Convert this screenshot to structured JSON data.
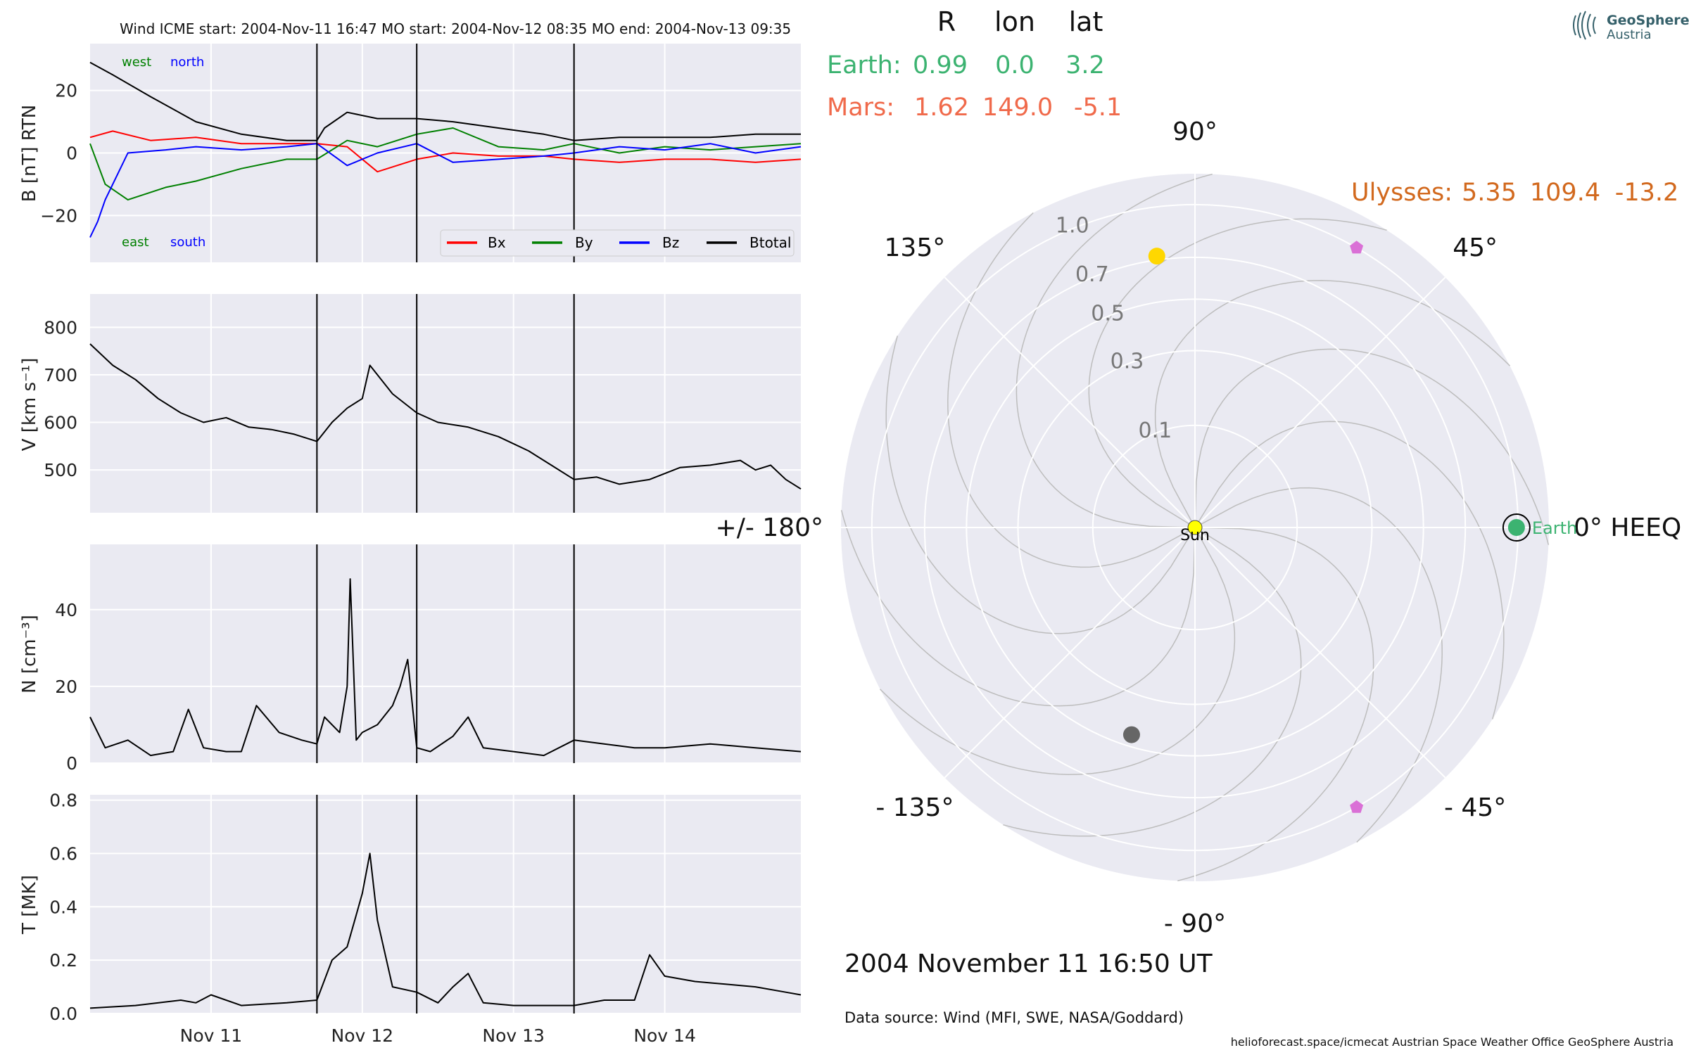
{
  "header": "Wind    ICME start: 2004-Nov-11 16:47   MO start: 2004-Nov-12 08:35   MO end: 2004-Nov-13 09:35",
  "logo": {
    "line1": "GeoSphere",
    "line2": "Austria"
  },
  "footer": {
    "date": "2004 November 11  16:50 UT",
    "source": "Data source: Wind (MFI, SWE, NASA/Goddard)",
    "credits": "helioforecast.space/icmecat   Austrian Space Weather Office   GeoSphere Austria"
  },
  "table": {
    "headers": [
      "R",
      "lon",
      "lat"
    ],
    "rows": [
      {
        "name": "Earth:",
        "R": "0.99",
        "lon": "0.0",
        "lat": "3.2",
        "color": "#3cb371"
      },
      {
        "name": "Mars:",
        "R": "1.62",
        "lon": "149.0",
        "lat": "-5.1",
        "color": "#f06a4b"
      },
      {
        "name": "Ulysses:",
        "R": "5.35",
        "lon": "109.4",
        "lat": "-13.2",
        "color": "#d2691e"
      }
    ]
  },
  "colors": {
    "panel_bg": "#eaeaf2",
    "bx": "#ff0000",
    "by": "#008000",
    "bz": "#0000ff",
    "bt": "#000000",
    "event_line": "#000000"
  },
  "chart_data": [
    {
      "type": "line",
      "ylabel": "B [nT] RTN",
      "ylim": [
        -35,
        35
      ],
      "yticks": [
        20,
        0,
        -20
      ],
      "yticklabels": [
        "20",
        "0",
        "−20"
      ],
      "annotations": {
        "west": "west",
        "north": "north",
        "east": "east",
        "south": "south"
      },
      "legend": [
        "Bx",
        "By",
        "Bz",
        "Btotal"
      ],
      "legend_position": "lower right",
      "x_unit": "days since 2004-11-10 00:00 UT",
      "event_lines": [
        1.7,
        2.36,
        3.4
      ],
      "series": [
        {
          "name": "Bx",
          "color": "#ff0000",
          "x": [
            0.2,
            0.35,
            0.6,
            0.9,
            1.2,
            1.5,
            1.7,
            1.9,
            2.1,
            2.36,
            2.6,
            2.9,
            3.2,
            3.4,
            3.7,
            4.0,
            4.3,
            4.6,
            4.9
          ],
          "y": [
            5,
            7,
            4,
            5,
            3,
            3,
            3,
            2,
            -6,
            -2,
            0,
            -1,
            -1,
            -2,
            -3,
            -2,
            -2,
            -3,
            -2
          ]
        },
        {
          "name": "By",
          "color": "#008000",
          "x": [
            0.2,
            0.3,
            0.45,
            0.7,
            0.9,
            1.2,
            1.5,
            1.7,
            1.9,
            2.1,
            2.36,
            2.6,
            2.9,
            3.2,
            3.4,
            3.7,
            4.0,
            4.3,
            4.6,
            4.9
          ],
          "y": [
            3,
            -10,
            -15,
            -11,
            -9,
            -5,
            -2,
            -2,
            4,
            2,
            6,
            8,
            2,
            1,
            3,
            0,
            2,
            1,
            2,
            3
          ]
        },
        {
          "name": "Bz",
          "color": "#0000ff",
          "x": [
            0.2,
            0.25,
            0.3,
            0.45,
            0.7,
            0.9,
            1.2,
            1.5,
            1.7,
            1.9,
            2.1,
            2.36,
            2.6,
            2.9,
            3.2,
            3.4,
            3.7,
            4.0,
            4.3,
            4.6,
            4.9
          ],
          "y": [
            -27,
            -22,
            -15,
            0,
            1,
            2,
            1,
            2,
            3,
            -4,
            0,
            3,
            -3,
            -2,
            -1,
            0,
            2,
            1,
            3,
            0,
            2
          ]
        },
        {
          "name": "Btotal",
          "color": "#000000",
          "x": [
            0.2,
            0.35,
            0.6,
            0.9,
            1.2,
            1.5,
            1.7,
            1.75,
            1.9,
            2.1,
            2.36,
            2.6,
            2.9,
            3.2,
            3.4,
            3.7,
            4.0,
            4.3,
            4.6,
            4.9
          ],
          "y": [
            29,
            25,
            18,
            10,
            6,
            4,
            4,
            8,
            13,
            11,
            11,
            10,
            8,
            6,
            4,
            5,
            5,
            5,
            6,
            6
          ]
        }
      ]
    },
    {
      "type": "line",
      "ylabel": "V [km s⁻¹]",
      "ylim": [
        410,
        870
      ],
      "yticks": [
        800,
        700,
        600,
        500
      ],
      "event_lines": [
        1.7,
        2.36,
        3.4
      ],
      "series": [
        {
          "name": "V",
          "color": "#000000",
          "x": [
            0.2,
            0.35,
            0.5,
            0.65,
            0.8,
            0.95,
            1.1,
            1.25,
            1.4,
            1.55,
            1.7,
            1.8,
            1.9,
            2.0,
            2.05,
            2.1,
            2.2,
            2.36,
            2.5,
            2.7,
            2.9,
            3.1,
            3.25,
            3.4,
            3.55,
            3.7,
            3.9,
            4.1,
            4.3,
            4.5,
            4.6,
            4.7,
            4.8,
            4.9
          ],
          "y": [
            765,
            720,
            690,
            650,
            620,
            600,
            610,
            590,
            585,
            575,
            560,
            600,
            630,
            650,
            720,
            700,
            660,
            620,
            600,
            590,
            570,
            540,
            510,
            480,
            485,
            470,
            480,
            505,
            510,
            520,
            500,
            510,
            480,
            460
          ]
        }
      ]
    },
    {
      "type": "line",
      "ylabel": "N [cm⁻³]",
      "ylim": [
        0,
        57
      ],
      "yticks": [
        40,
        20,
        0
      ],
      "event_lines": [
        1.7,
        2.36,
        3.4
      ],
      "series": [
        {
          "name": "N",
          "color": "#000000",
          "x": [
            0.2,
            0.3,
            0.45,
            0.6,
            0.75,
            0.85,
            0.95,
            1.1,
            1.2,
            1.3,
            1.45,
            1.6,
            1.7,
            1.75,
            1.85,
            1.9,
            1.92,
            1.96,
            2.0,
            2.1,
            2.2,
            2.25,
            2.3,
            2.36,
            2.45,
            2.6,
            2.7,
            2.8,
            3.0,
            3.2,
            3.4,
            3.6,
            3.8,
            4.0,
            4.3,
            4.6,
            4.9
          ],
          "y": [
            12,
            4,
            6,
            2,
            3,
            14,
            4,
            3,
            3,
            15,
            8,
            6,
            5,
            12,
            8,
            20,
            48,
            6,
            8,
            10,
            15,
            20,
            27,
            4,
            3,
            7,
            12,
            4,
            3,
            2,
            6,
            5,
            4,
            4,
            5,
            4,
            3
          ]
        }
      ]
    },
    {
      "type": "line",
      "ylabel": "T [MK]",
      "ylim": [
        0,
        0.82
      ],
      "yticks": [
        0.8,
        0.6,
        0.4,
        0.2,
        0.0
      ],
      "xticklabels": [
        "Nov 11",
        "Nov 12",
        "Nov 13",
        "Nov 14"
      ],
      "xticks": [
        1,
        2,
        3,
        4
      ],
      "xlim": [
        0.2,
        4.9
      ],
      "event_lines": [
        1.7,
        2.36,
        3.4
      ],
      "series": [
        {
          "name": "T",
          "color": "#000000",
          "x": [
            0.2,
            0.5,
            0.8,
            0.9,
            1.0,
            1.2,
            1.5,
            1.7,
            1.8,
            1.9,
            1.95,
            2.0,
            2.05,
            2.1,
            2.2,
            2.36,
            2.5,
            2.6,
            2.7,
            2.8,
            3.0,
            3.2,
            3.4,
            3.6,
            3.8,
            3.9,
            4.0,
            4.2,
            4.4,
            4.6,
            4.8,
            4.9
          ],
          "y": [
            0.02,
            0.03,
            0.05,
            0.04,
            0.07,
            0.03,
            0.04,
            0.05,
            0.2,
            0.25,
            0.35,
            0.45,
            0.6,
            0.35,
            0.1,
            0.08,
            0.04,
            0.1,
            0.15,
            0.04,
            0.03,
            0.03,
            0.03,
            0.05,
            0.05,
            0.22,
            0.14,
            0.12,
            0.11,
            0.1,
            0.08,
            0.07
          ]
        }
      ]
    },
    {
      "type": "scatter",
      "projection": "polar",
      "angle_labels": [
        "90°",
        "45°",
        "0° HEEQ",
        "- 45°",
        "- 90°",
        "- 135°",
        "+/- 180°",
        "135°"
      ],
      "r_ticks": [
        "0.1",
        "0.3",
        "0.5",
        "0.7",
        "1.0"
      ],
      "grid": true,
      "bodies": [
        {
          "name": "Sun",
          "r": 0.0,
          "lon": 0.0,
          "color": "#ffff00",
          "label": "Sun"
        },
        {
          "name": "Earth",
          "r": 0.99,
          "lon": 0.0,
          "color": "#3cb371",
          "label": "Earth"
        },
        {
          "name": "Mercury",
          "r": 0.45,
          "lon": -107.0,
          "color": "#666666"
        },
        {
          "name": "Venus",
          "r": 0.72,
          "lon": 98.0,
          "color": "#ffd700"
        },
        {
          "name": "STEREO-like marker 1",
          "r": 1.0,
          "lon": 60.0,
          "color": "#da70d6",
          "marker": "pentagon"
        },
        {
          "name": "STEREO-like marker 2",
          "r": 1.0,
          "lon": -60.0,
          "color": "#da70d6",
          "marker": "pentagon"
        }
      ]
    }
  ]
}
